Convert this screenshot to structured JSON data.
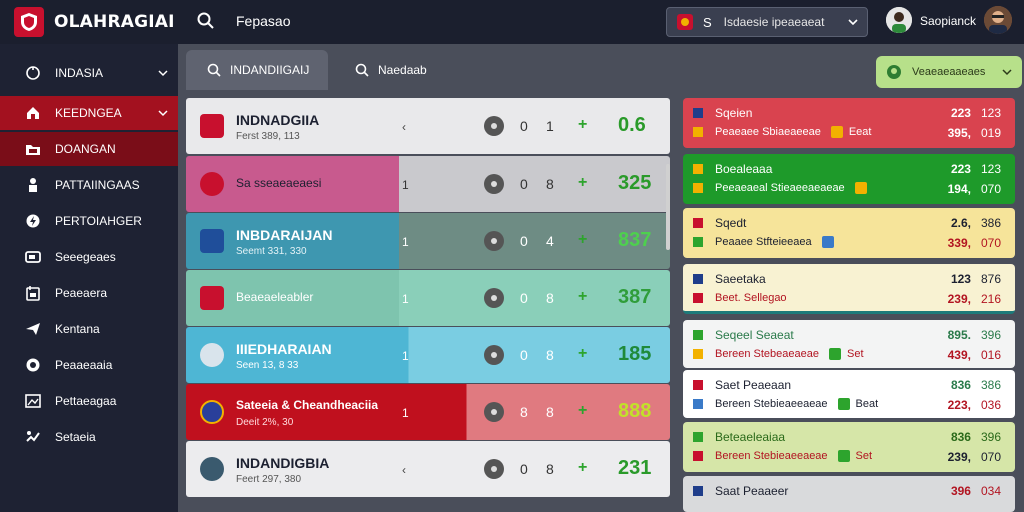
{
  "app": {
    "brand": "OLAHRAGIAI"
  },
  "header": {
    "search_text": "Fepasao",
    "select": {
      "prefix": "S",
      "value": "Isdaesie ipeaeaeat"
    },
    "user_name": "Saopianck"
  },
  "sidebar": {
    "items": [
      {
        "label": "INDASIA",
        "icon": "globe-icon"
      },
      {
        "label": "KEEDNGEA",
        "icon": "home-icon"
      },
      {
        "label": "DOANGAN",
        "icon": "folder-icon"
      },
      {
        "label": "PATTAIINGAAS",
        "icon": "person-icon"
      },
      {
        "label": "PERTOIAHGER",
        "icon": "shield-icon"
      },
      {
        "label": "Seeegeaes",
        "icon": "card-icon"
      },
      {
        "label": "Peaeaera",
        "icon": "calendar-icon"
      },
      {
        "label": "Kentana",
        "icon": "send-icon"
      },
      {
        "label": "Peaaeaaia",
        "icon": "chat-icon"
      },
      {
        "label": "Pettaeagaa",
        "icon": "image-icon"
      },
      {
        "label": "Setaeia",
        "icon": "gear-icon"
      }
    ]
  },
  "tabs": [
    {
      "label": "INDANDIIGAIJ"
    },
    {
      "label": "Naedaab"
    }
  ],
  "filter": {
    "label": "Veaeaeaaeaes"
  },
  "matches": [
    {
      "title": "INDNADGIIA",
      "subtitle": "Ferst 389, 113",
      "arrow": "‹",
      "n1": "0",
      "n2": "1",
      "plus": "+",
      "score": "0.6"
    },
    {
      "single": "Sa sseaeaeaesi",
      "arrow": "1",
      "n1": "0",
      "n2": "8",
      "plus": "+",
      "score": "325"
    },
    {
      "title": "INBDARAIJAN",
      "subtitle": "Seemt 331, 330",
      "arrow": "1",
      "n1": "0",
      "n2": "4",
      "plus": "+",
      "score": "837"
    },
    {
      "single": "Beaeaeleabler",
      "arrow": "1",
      "n1": "0",
      "n2": "8",
      "plus": "+",
      "score": "387"
    },
    {
      "title": "IIIEDHARAIAN",
      "subtitle": "Seen 13, 8 33",
      "arrow": "1",
      "n1": "0",
      "n2": "8",
      "plus": "+",
      "score": "185"
    },
    {
      "title": "Sateeia & Cheandheaciia",
      "subtitle": "Deeit 2%, 30",
      "arrow": "1",
      "n1": "8",
      "n2": "8",
      "plus": "+",
      "score": "888"
    },
    {
      "title": "INDANDIGBIA",
      "subtitle": "Feert 297, 380",
      "arrow": "‹",
      "n1": "0",
      "n2": "8",
      "plus": "+",
      "score": "231"
    }
  ],
  "odds": [
    {
      "l1": "Sqeien",
      "l2": "Peaeaee Sbiaeaeeae",
      "tag": "Eeat",
      "r1a": "223",
      "r1b": "123",
      "r2a": "395,",
      "r2b": "019"
    },
    {
      "l1": "Boealeaaa",
      "l2": "Peeaeaeal Stieaeeaeaeae",
      "tag": "",
      "r1a": "223",
      "r1b": "123",
      "r2a": "194,",
      "r2b": "070"
    },
    {
      "l1": "Sqedt",
      "l2": "Peaaee Stfteieeaea",
      "tag": "",
      "r1a": "2.6,",
      "r1b": "386",
      "r2a": "339,",
      "r2b": "070"
    },
    {
      "l1": "Saeetaka",
      "l2": "Beet. Sellegao",
      "tag": "",
      "r1a": "123",
      "r1b": "876",
      "r2a": "239,",
      "r2b": "216"
    },
    {
      "l1": "Seqeel Seaeat",
      "l2": "Bereen Stebeaeaeae",
      "tag": "Set",
      "r1a": "895.",
      "r1b": "396",
      "r2a": "439,",
      "r2b": "016"
    },
    {
      "l1": "Saet Peaeaan",
      "l2": "Bereen Stebieaeeaeae",
      "tag": "Beat",
      "r1a": "836",
      "r1b": "386",
      "r2a": "223,",
      "r2b": "036"
    },
    {
      "l1": "Beteaeleaiaa",
      "l2": "Bereen Stebieaeeaeae",
      "tag": "Set",
      "r1a": "836",
      "r1b": "396",
      "r2a": "239,",
      "r2b": "070"
    },
    {
      "l1": "Saat Peaaeer",
      "l2": "",
      "tag": "",
      "r1a": "",
      "r1b": "",
      "r2a": "396",
      "r2b": "034"
    }
  ]
}
